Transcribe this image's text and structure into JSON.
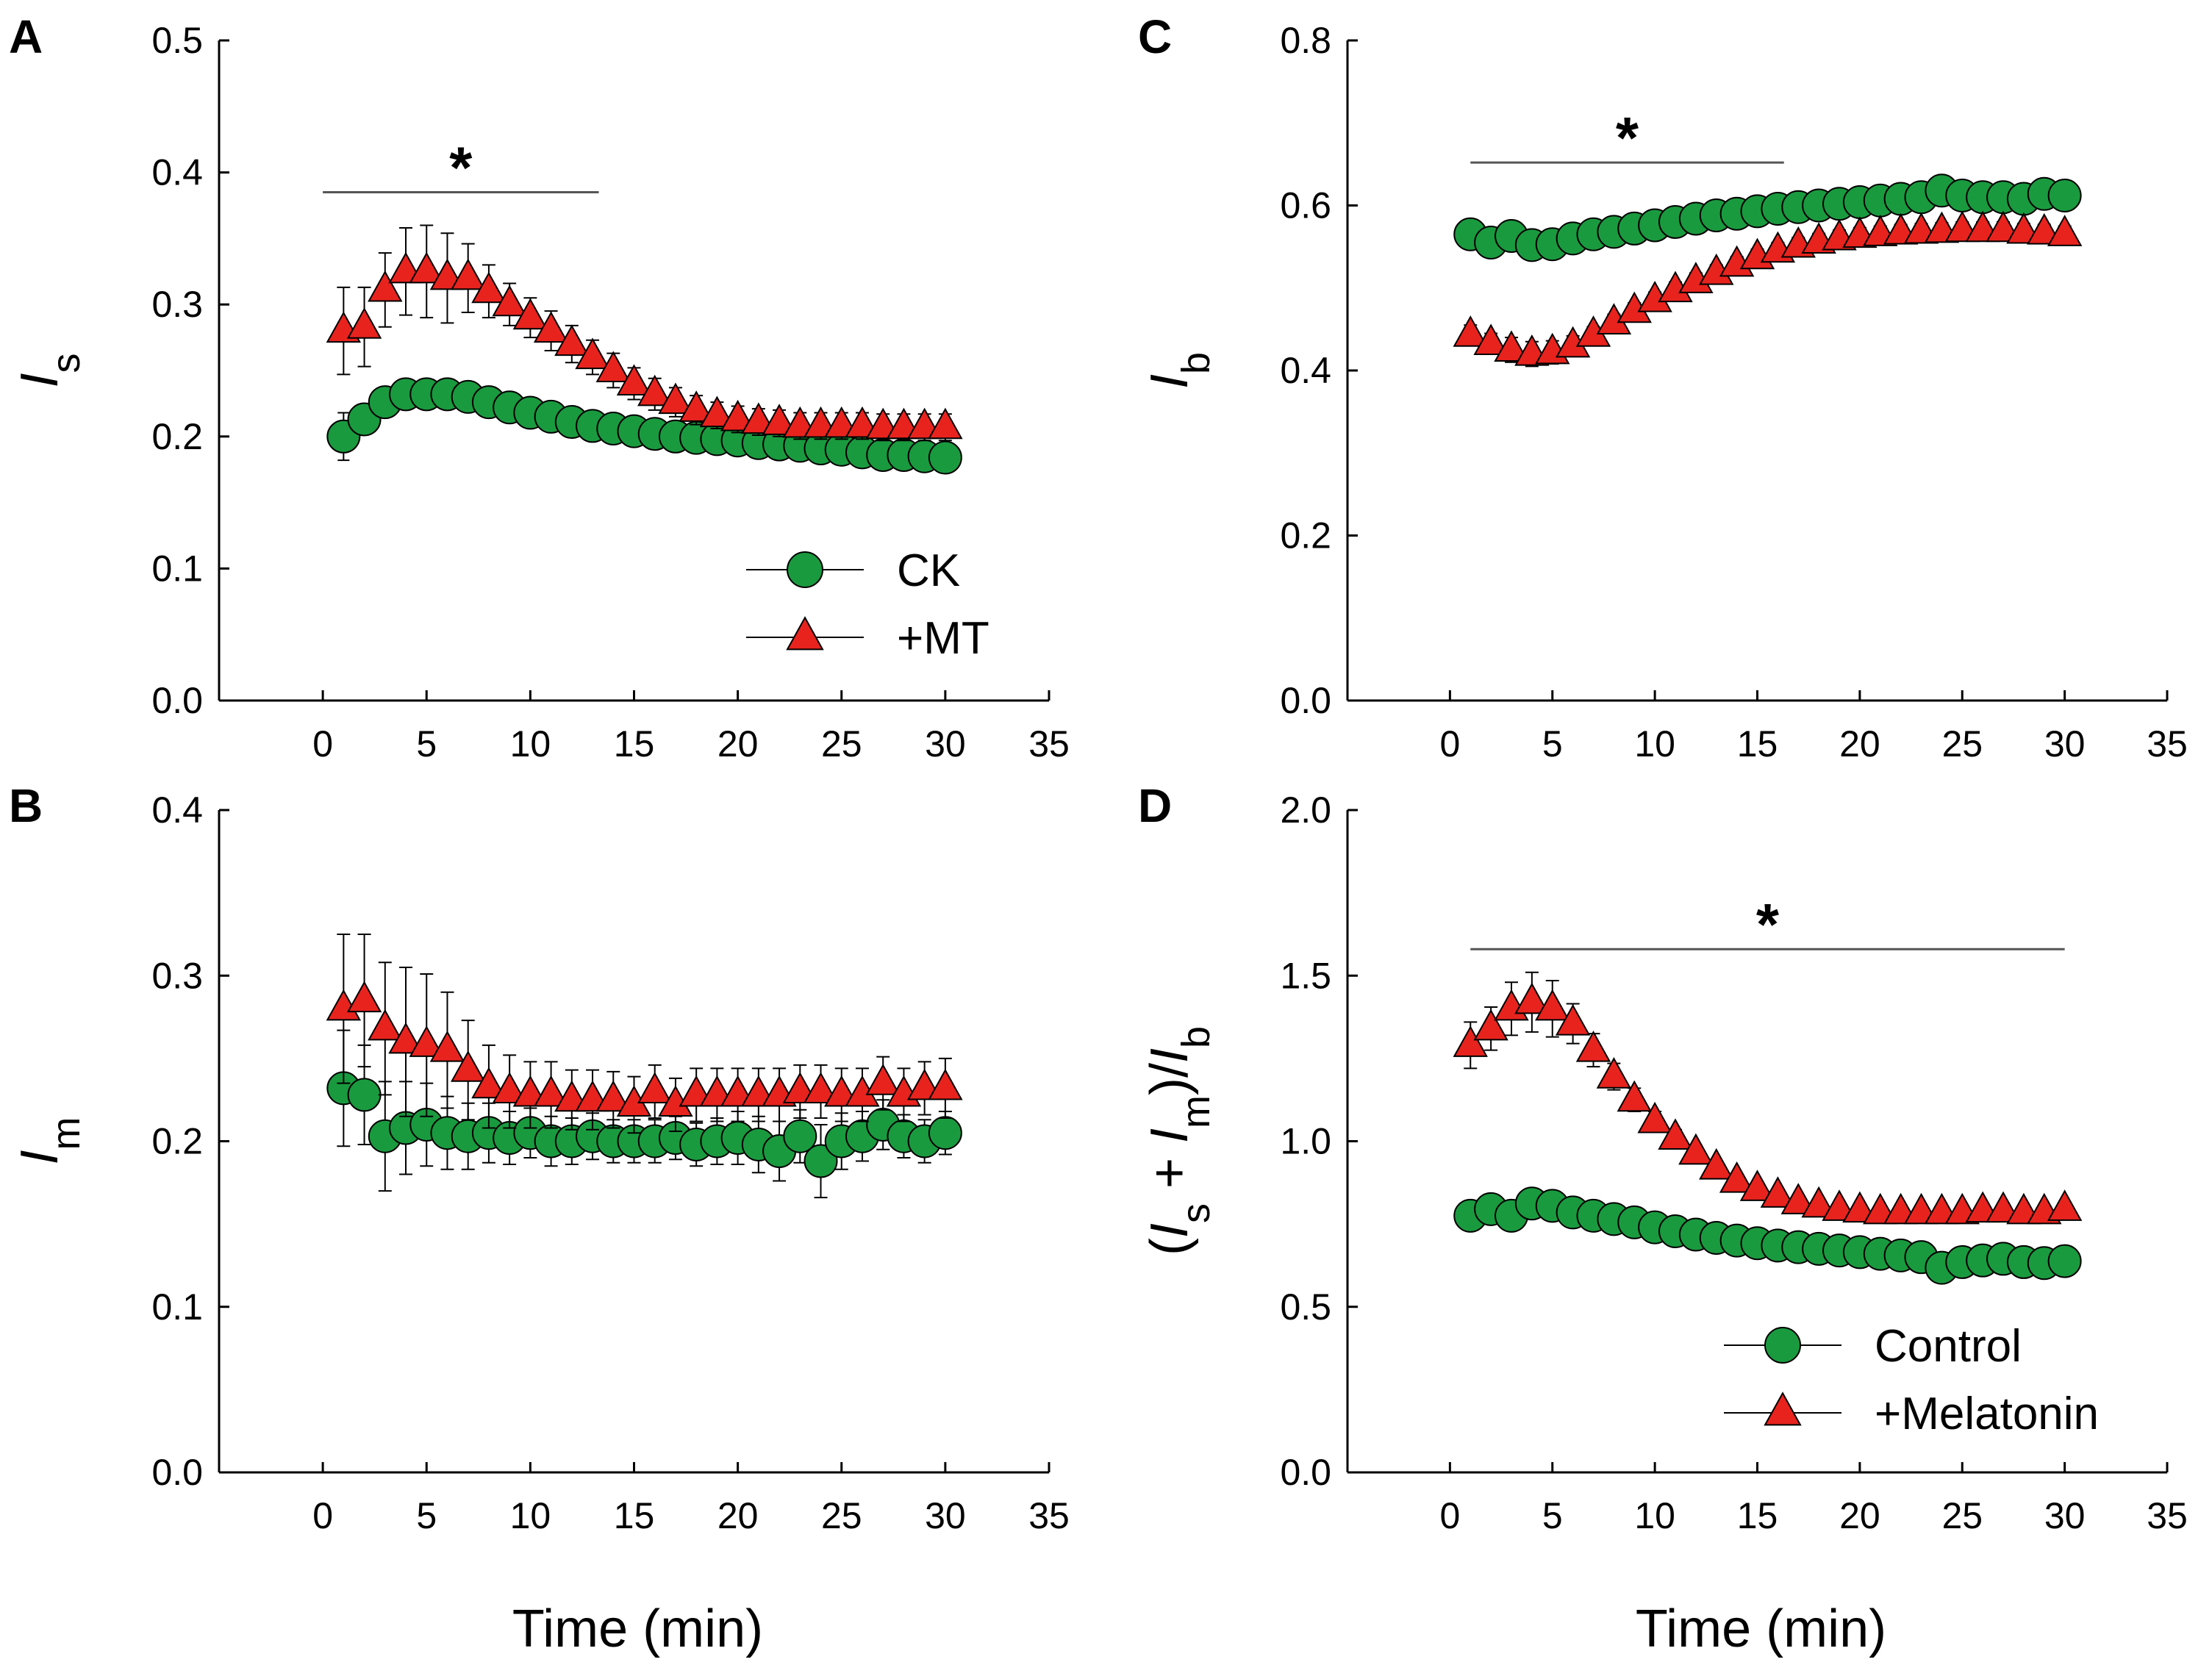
{
  "colors": {
    "control": "#1a9a3f",
    "treatment": "#e8231e"
  },
  "x_axis_label": "Time (min)",
  "chart_data": [
    {
      "id": "A",
      "type": "scatter",
      "panel_label": "A",
      "ylabel_main": "I",
      "ylabel_sub": "s",
      "xlim": [
        -5,
        35
      ],
      "ylim": [
        0,
        0.5
      ],
      "xticks": [
        "0",
        "5",
        "10",
        "15",
        "20",
        "25",
        "30",
        "35"
      ],
      "yticks": [
        "0.0",
        "0.1",
        "0.2",
        "0.3",
        "0.4",
        "0.5"
      ],
      "significance": {
        "marker": "*",
        "x_start": 0,
        "x_end": 13.3,
        "y": 0.385
      },
      "legend": {
        "position": "bottom-right",
        "entries": [
          "CK",
          "+MT"
        ]
      },
      "series": [
        {
          "name": "CK",
          "marker": "circle",
          "x": [
            1,
            2,
            3,
            4,
            5,
            6,
            7,
            8,
            9,
            10,
            11,
            12,
            13,
            14,
            15,
            16,
            17,
            18,
            19,
            20,
            21,
            22,
            23,
            24,
            25,
            26,
            27,
            28,
            29,
            30
          ],
          "y": [
            0.2,
            0.213,
            0.226,
            0.232,
            0.232,
            0.232,
            0.23,
            0.226,
            0.222,
            0.218,
            0.215,
            0.211,
            0.208,
            0.206,
            0.204,
            0.202,
            0.2,
            0.199,
            0.198,
            0.197,
            0.195,
            0.194,
            0.193,
            0.191,
            0.19,
            0.188,
            0.186,
            0.186,
            0.185,
            0.184
          ],
          "err": [
            0.018,
            0.008,
            0.006,
            0.005,
            0.005,
            0.005,
            0.005,
            0.004,
            0.004,
            0.004,
            0.004,
            0.004,
            0.004,
            0.004,
            0.004,
            0.004,
            0.004,
            0.004,
            0.004,
            0.004,
            0.004,
            0.004,
            0.004,
            0.004,
            0.004,
            0.004,
            0.004,
            0.004,
            0.004,
            0.004
          ]
        },
        {
          "name": "+MT",
          "marker": "triangle",
          "x": [
            1,
            2,
            3,
            4,
            5,
            6,
            7,
            8,
            9,
            10,
            11,
            12,
            13,
            14,
            15,
            16,
            17,
            18,
            19,
            20,
            21,
            22,
            23,
            24,
            25,
            26,
            27,
            28,
            29,
            30
          ],
          "y": [
            0.28,
            0.283,
            0.311,
            0.325,
            0.325,
            0.32,
            0.32,
            0.31,
            0.3,
            0.29,
            0.28,
            0.27,
            0.26,
            0.25,
            0.24,
            0.232,
            0.226,
            0.22,
            0.216,
            0.213,
            0.211,
            0.21,
            0.208,
            0.208,
            0.208,
            0.208,
            0.207,
            0.207,
            0.207,
            0.207
          ],
          "err": [
            0.033,
            0.03,
            0.028,
            0.033,
            0.035,
            0.034,
            0.026,
            0.02,
            0.016,
            0.015,
            0.015,
            0.014,
            0.013,
            0.013,
            0.012,
            0.012,
            0.011,
            0.011,
            0.01,
            0.01,
            0.01,
            0.01,
            0.01,
            0.01,
            0.01,
            0.01,
            0.01,
            0.01,
            0.01,
            0.01
          ]
        }
      ]
    },
    {
      "id": "B",
      "type": "scatter",
      "panel_label": "B",
      "ylabel_main": "I",
      "ylabel_sub": "m",
      "xlim": [
        -5,
        35
      ],
      "ylim": [
        0,
        0.4
      ],
      "xticks": [
        "0",
        "5",
        "10",
        "15",
        "20",
        "25",
        "30",
        "35"
      ],
      "yticks": [
        "0.0",
        "0.1",
        "0.2",
        "0.3",
        "0.4"
      ],
      "series": [
        {
          "name": "CK",
          "marker": "circle",
          "x": [
            1,
            2,
            3,
            4,
            5,
            6,
            7,
            8,
            9,
            10,
            11,
            12,
            13,
            14,
            15,
            16,
            17,
            18,
            19,
            20,
            21,
            22,
            23,
            24,
            25,
            26,
            27,
            28,
            29,
            30
          ],
          "y": [
            0.232,
            0.228,
            0.203,
            0.208,
            0.21,
            0.205,
            0.203,
            0.205,
            0.202,
            0.205,
            0.2,
            0.2,
            0.203,
            0.2,
            0.2,
            0.2,
            0.202,
            0.198,
            0.2,
            0.202,
            0.198,
            0.194,
            0.203,
            0.188,
            0.2,
            0.203,
            0.21,
            0.203,
            0.2,
            0.205
          ],
          "err": [
            0.035,
            0.03,
            0.033,
            0.028,
            0.025,
            0.022,
            0.02,
            0.018,
            0.016,
            0.015,
            0.015,
            0.014,
            0.014,
            0.013,
            0.013,
            0.013,
            0.013,
            0.013,
            0.014,
            0.016,
            0.017,
            0.018,
            0.016,
            0.022,
            0.017,
            0.015,
            0.015,
            0.013,
            0.013,
            0.013
          ]
        },
        {
          "name": "+MT",
          "marker": "triangle",
          "x": [
            1,
            2,
            3,
            4,
            5,
            6,
            7,
            8,
            9,
            10,
            11,
            12,
            13,
            14,
            15,
            16,
            17,
            18,
            19,
            20,
            21,
            22,
            23,
            24,
            25,
            26,
            27,
            28,
            29,
            30
          ],
          "y": [
            0.28,
            0.285,
            0.268,
            0.26,
            0.258,
            0.255,
            0.243,
            0.233,
            0.23,
            0.228,
            0.228,
            0.225,
            0.225,
            0.225,
            0.222,
            0.23,
            0.222,
            0.228,
            0.228,
            0.228,
            0.228,
            0.228,
            0.23,
            0.23,
            0.228,
            0.228,
            0.235,
            0.228,
            0.232,
            0.232
          ],
          "err": [
            0.045,
            0.04,
            0.04,
            0.045,
            0.043,
            0.035,
            0.03,
            0.025,
            0.022,
            0.02,
            0.02,
            0.018,
            0.018,
            0.017,
            0.017,
            0.016,
            0.016,
            0.016,
            0.016,
            0.016,
            0.016,
            0.016,
            0.016,
            0.016,
            0.016,
            0.016,
            0.016,
            0.016,
            0.016,
            0.018
          ]
        }
      ]
    },
    {
      "id": "C",
      "type": "scatter",
      "panel_label": "C",
      "ylabel_main": "I",
      "ylabel_sub": "b",
      "xlim": [
        -5,
        35
      ],
      "ylim": [
        0,
        0.8
      ],
      "xticks": [
        "0",
        "5",
        "10",
        "15",
        "20",
        "25",
        "30",
        "35"
      ],
      "yticks": [
        "0.0",
        "0.2",
        "0.4",
        "0.6",
        "0.8"
      ],
      "significance": {
        "marker": "*",
        "x_start": 1,
        "x_end": 16.3,
        "y": 0.652
      },
      "series": [
        {
          "name": "CK",
          "marker": "circle",
          "x": [
            1,
            2,
            3,
            4,
            5,
            6,
            7,
            8,
            9,
            10,
            11,
            12,
            13,
            14,
            15,
            16,
            17,
            18,
            19,
            20,
            21,
            22,
            23,
            24,
            25,
            26,
            27,
            28,
            29,
            30
          ],
          "y": [
            0.565,
            0.555,
            0.563,
            0.552,
            0.553,
            0.56,
            0.565,
            0.568,
            0.572,
            0.576,
            0.58,
            0.584,
            0.588,
            0.59,
            0.593,
            0.596,
            0.598,
            0.6,
            0.602,
            0.604,
            0.606,
            0.608,
            0.61,
            0.618,
            0.612,
            0.61,
            0.61,
            0.608,
            0.614,
            0.612
          ],
          "err": [
            0.01,
            0.01,
            0.015,
            0.012,
            0.01,
            0.008,
            0.008,
            0.008,
            0.008,
            0.008,
            0.008,
            0.008,
            0.008,
            0.008,
            0.008,
            0.008,
            0.008,
            0.008,
            0.008,
            0.008,
            0.008,
            0.008,
            0.008,
            0.008,
            0.008,
            0.008,
            0.008,
            0.008,
            0.008,
            0.008
          ]
        },
        {
          "name": "+MT",
          "marker": "triangle",
          "x": [
            1,
            2,
            3,
            4,
            5,
            6,
            7,
            8,
            9,
            10,
            11,
            12,
            13,
            14,
            15,
            16,
            17,
            18,
            19,
            20,
            21,
            22,
            23,
            24,
            25,
            26,
            27,
            28,
            29,
            30
          ],
          "y": [
            0.443,
            0.433,
            0.425,
            0.42,
            0.422,
            0.43,
            0.443,
            0.458,
            0.472,
            0.485,
            0.497,
            0.508,
            0.518,
            0.528,
            0.537,
            0.545,
            0.551,
            0.556,
            0.56,
            0.563,
            0.565,
            0.567,
            0.568,
            0.569,
            0.57,
            0.57,
            0.57,
            0.568,
            0.567,
            0.565
          ],
          "err": [
            0.012,
            0.012,
            0.015,
            0.015,
            0.014,
            0.012,
            0.01,
            0.01,
            0.01,
            0.01,
            0.01,
            0.01,
            0.01,
            0.01,
            0.01,
            0.01,
            0.01,
            0.01,
            0.01,
            0.01,
            0.01,
            0.01,
            0.01,
            0.01,
            0.01,
            0.01,
            0.01,
            0.01,
            0.01,
            0.01
          ]
        }
      ]
    },
    {
      "id": "D",
      "type": "scatter",
      "panel_label": "D",
      "ylabel_main": "(I",
      "ylabel_sub": "s",
      "ylabel_mid": " + I",
      "ylabel_sub2": "m",
      "ylabel_mid2": ")/I",
      "ylabel_sub3": "b",
      "xlim": [
        -5,
        35
      ],
      "ylim": [
        0,
        2.0
      ],
      "xticks": [
        "0",
        "5",
        "10",
        "15",
        "20",
        "25",
        "30",
        "35"
      ],
      "yticks": [
        "0.0",
        "0.5",
        "1.0",
        "1.5",
        "2.0"
      ],
      "significance": {
        "marker": "*",
        "x_start": 1,
        "x_end": 30,
        "y": 1.58
      },
      "legend": {
        "position": "bottom-right",
        "entries": [
          "Control",
          "+Melatonin"
        ]
      },
      "series": [
        {
          "name": "Control",
          "marker": "circle",
          "x": [
            1,
            2,
            3,
            4,
            5,
            6,
            7,
            8,
            9,
            10,
            11,
            12,
            13,
            14,
            15,
            16,
            17,
            18,
            19,
            20,
            21,
            22,
            23,
            24,
            25,
            26,
            27,
            28,
            29,
            30
          ],
          "y": [
            0.775,
            0.795,
            0.775,
            0.812,
            0.805,
            0.785,
            0.775,
            0.765,
            0.755,
            0.74,
            0.728,
            0.718,
            0.708,
            0.7,
            0.692,
            0.685,
            0.68,
            0.675,
            0.67,
            0.665,
            0.66,
            0.655,
            0.65,
            0.618,
            0.635,
            0.64,
            0.645,
            0.635,
            0.632,
            0.638
          ],
          "err": [
            0.025,
            0.03,
            0.04,
            0.035,
            0.025,
            0.02,
            0.018,
            0.016,
            0.015,
            0.014,
            0.013,
            0.012,
            0.012,
            0.012,
            0.011,
            0.011,
            0.011,
            0.011,
            0.011,
            0.011,
            0.011,
            0.011,
            0.011,
            0.015,
            0.015,
            0.015,
            0.015,
            0.014,
            0.013,
            0.013
          ]
        },
        {
          "name": "+Melatonin",
          "marker": "triangle",
          "x": [
            1,
            2,
            3,
            4,
            5,
            6,
            7,
            8,
            9,
            10,
            11,
            12,
            13,
            14,
            15,
            16,
            17,
            18,
            19,
            20,
            21,
            22,
            23,
            24,
            25,
            26,
            27,
            28,
            29,
            30
          ],
          "y": [
            1.29,
            1.34,
            1.4,
            1.42,
            1.4,
            1.355,
            1.275,
            1.195,
            1.125,
            1.06,
            1.01,
            0.965,
            0.92,
            0.88,
            0.855,
            0.835,
            0.815,
            0.805,
            0.795,
            0.79,
            0.785,
            0.785,
            0.785,
            0.785,
            0.785,
            0.79,
            0.79,
            0.785,
            0.785,
            0.795
          ],
          "err": [
            0.07,
            0.065,
            0.08,
            0.09,
            0.085,
            0.06,
            0.05,
            0.04,
            0.035,
            0.03,
            0.025,
            0.022,
            0.02,
            0.018,
            0.017,
            0.016,
            0.015,
            0.015,
            0.015,
            0.015,
            0.015,
            0.015,
            0.015,
            0.015,
            0.015,
            0.015,
            0.015,
            0.015,
            0.015,
            0.015
          ]
        }
      ]
    }
  ]
}
